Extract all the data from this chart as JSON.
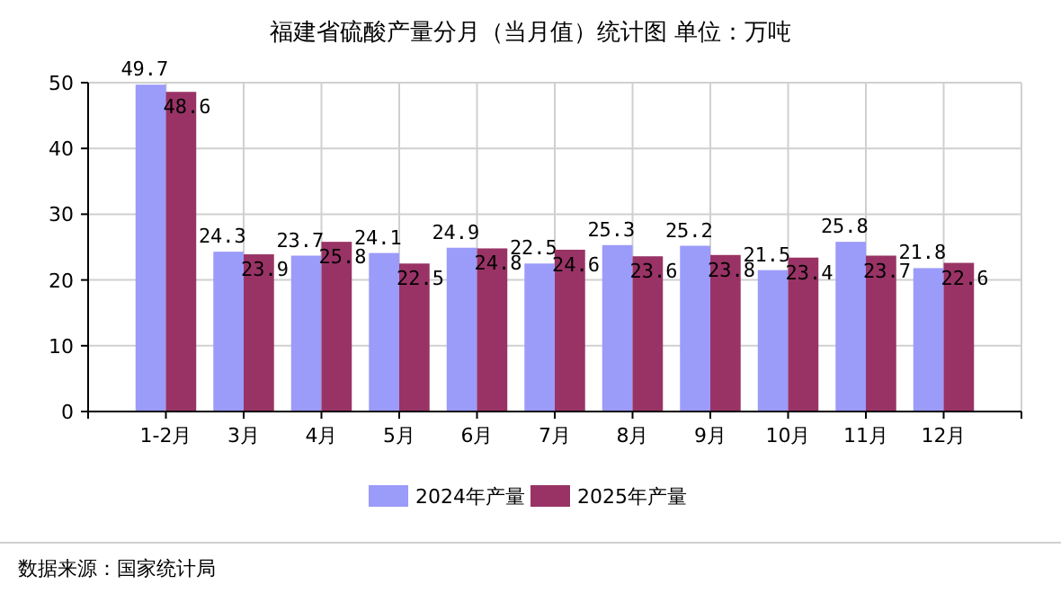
{
  "chart_data": {
    "type": "bar",
    "title": "福建省硫酸产量分月（当月值）统计图 单位：万吨",
    "categories": [
      "1-2月",
      "3月",
      "4月",
      "5月",
      "6月",
      "7月",
      "8月",
      "9月",
      "10月",
      "11月",
      "12月"
    ],
    "series": [
      {
        "name": "2024年产量",
        "color": "#9b9bfa",
        "values": [
          49.7,
          24.3,
          23.7,
          24.1,
          24.9,
          22.5,
          25.3,
          25.2,
          21.5,
          25.8,
          21.8
        ]
      },
      {
        "name": "2025年产量",
        "color": "#993366",
        "values": [
          48.6,
          23.9,
          25.8,
          22.5,
          24.8,
          24.6,
          23.6,
          23.8,
          23.4,
          23.7,
          22.6
        ]
      }
    ],
    "ylim": [
      0,
      50
    ],
    "yticks": [
      0,
      10,
      20,
      30,
      40,
      50
    ],
    "grid": true,
    "legend": "bottom",
    "data_labels": true,
    "annotations": [
      "数据来源：国家统计局"
    ]
  }
}
